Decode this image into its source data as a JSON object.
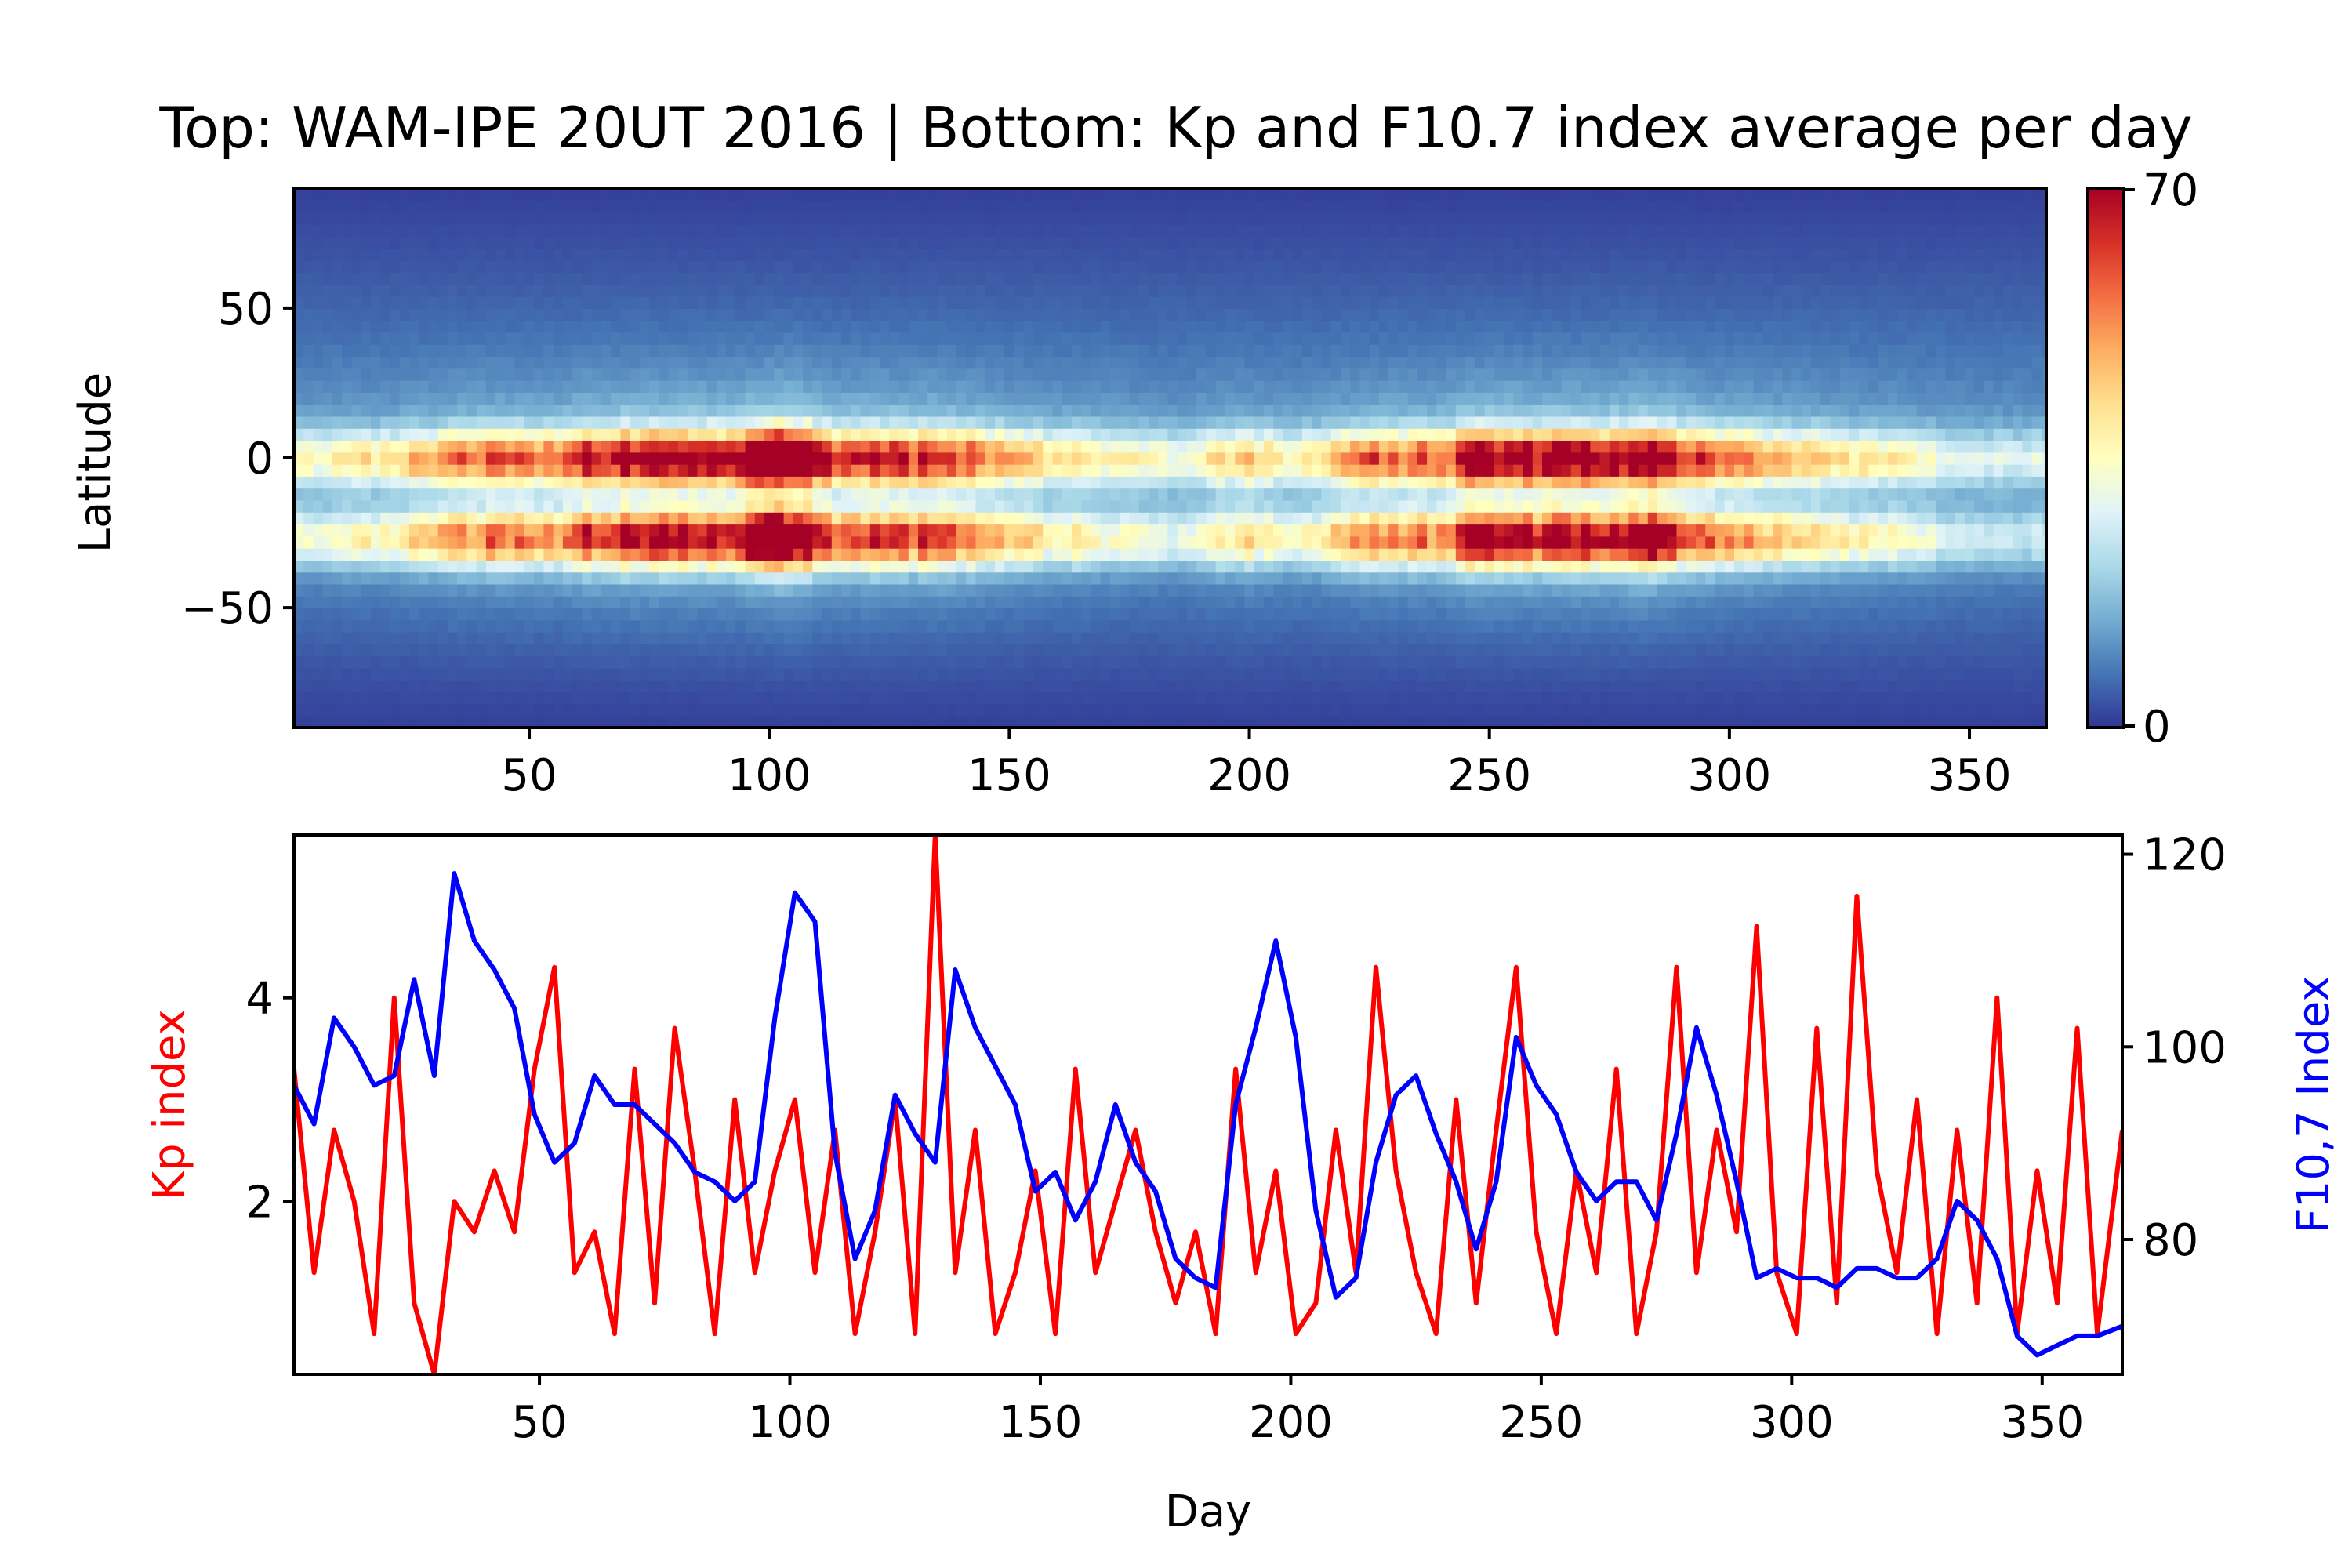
{
  "figure": {
    "title": "Top: WAM-IPE 20UT 2016 | Bottom: Kp and F10.7 index average per day"
  },
  "colors": {
    "kp": "#ff0000",
    "f107": "#0000ff",
    "colormap": [
      "#313695",
      "#4575b4",
      "#74add1",
      "#abd9e9",
      "#e0f3f8",
      "#ffffbf",
      "#fee090",
      "#fdae61",
      "#f46d43",
      "#d73027",
      "#a50026"
    ]
  },
  "chart_data": [
    {
      "type": "heatmap",
      "title": "",
      "xlabel": "",
      "ylabel": "Latitude",
      "xlim": [
        1,
        366
      ],
      "ylim": [
        -90,
        90
      ],
      "xticks": [
        50,
        100,
        150,
        200,
        250,
        300,
        350
      ],
      "yticks": [
        50,
        0,
        -50
      ],
      "ytick_labels": [
        "50",
        "0",
        "−50"
      ],
      "colorbar": {
        "min": 0,
        "max": 70,
        "tick_labels": [
          "70",
          "0"
        ],
        "colormap": "RdYlBu_r"
      },
      "description_values": {
        "equatorial_crests_lat": [
          0,
          -25
        ],
        "active_periods_days": [
          [
            15,
            140
          ],
          [
            220,
            300
          ]
        ],
        "quiet_periods_days": [
          [
            145,
            215
          ],
          [
            305,
            366
          ]
        ]
      }
    },
    {
      "type": "line",
      "title": "",
      "xlabel": "Day",
      "xlim": [
        1,
        366
      ],
      "xticks": [
        50,
        100,
        150,
        200,
        250,
        300,
        350
      ],
      "grid": false,
      "left_axis": {
        "label": "Kp index",
        "ylim": [
          0.3,
          5.6
        ],
        "ticks": [
          2,
          4
        ],
        "tick_labels": [
          "2",
          "4"
        ]
      },
      "right_axis": {
        "label": "F10,7 Index",
        "ylim": [
          66,
          122
        ],
        "ticks": [
          80,
          100,
          120
        ],
        "tick_labels": [
          "80",
          "100",
          "120"
        ]
      },
      "series": [
        {
          "name": "Kp index",
          "axis": "left",
          "x": [
            1,
            5,
            9,
            13,
            17,
            21,
            25,
            29,
            33,
            37,
            41,
            45,
            49,
            53,
            57,
            61,
            65,
            69,
            73,
            77,
            81,
            85,
            89,
            93,
            97,
            101,
            105,
            109,
            113,
            117,
            121,
            125,
            129,
            133,
            137,
            141,
            145,
            149,
            153,
            157,
            161,
            165,
            169,
            173,
            177,
            181,
            185,
            189,
            193,
            197,
            201,
            205,
            209,
            213,
            217,
            221,
            225,
            229,
            233,
            237,
            241,
            245,
            249,
            253,
            257,
            261,
            265,
            269,
            273,
            277,
            281,
            285,
            289,
            293,
            297,
            301,
            305,
            309,
            313,
            317,
            321,
            325,
            329,
            333,
            337,
            341,
            345,
            349,
            353,
            357,
            361,
            366
          ],
          "values": [
            3.3,
            1.3,
            2.7,
            2.0,
            0.7,
            4.0,
            1.0,
            0.3,
            2.0,
            1.7,
            2.3,
            1.7,
            3.3,
            4.3,
            1.3,
            1.7,
            0.7,
            3.3,
            1.0,
            3.7,
            2.3,
            0.7,
            3.0,
            1.3,
            2.3,
            3.0,
            1.3,
            2.7,
            0.7,
            1.7,
            3.0,
            0.7,
            5.6,
            1.3,
            2.7,
            0.7,
            1.3,
            2.3,
            0.7,
            3.3,
            1.3,
            2.0,
            2.7,
            1.7,
            1.0,
            1.7,
            0.7,
            3.3,
            1.3,
            2.3,
            0.7,
            1.0,
            2.7,
            1.3,
            4.3,
            2.3,
            1.3,
            0.7,
            3.0,
            1.0,
            2.7,
            4.3,
            1.7,
            0.7,
            2.3,
            1.3,
            3.3,
            0.7,
            1.7,
            4.3,
            1.3,
            2.7,
            1.7,
            4.7,
            1.3,
            0.7,
            3.7,
            1.0,
            5.0,
            2.3,
            1.3,
            3.0,
            0.7,
            2.7,
            1.0,
            4.0,
            0.7,
            2.3,
            1.0,
            3.7,
            0.7,
            2.7
          ],
          "line_color": "#ff0000"
        },
        {
          "name": "F10,7 Index",
          "axis": "right",
          "x": [
            1,
            5,
            9,
            13,
            17,
            21,
            25,
            29,
            33,
            37,
            41,
            45,
            49,
            53,
            57,
            61,
            65,
            69,
            73,
            77,
            81,
            85,
            89,
            93,
            97,
            101,
            105,
            109,
            113,
            117,
            121,
            125,
            129,
            133,
            137,
            141,
            145,
            149,
            153,
            157,
            161,
            165,
            169,
            173,
            177,
            181,
            185,
            189,
            193,
            197,
            201,
            205,
            209,
            213,
            217,
            221,
            225,
            229,
            233,
            237,
            241,
            245,
            249,
            253,
            257,
            261,
            265,
            269,
            273,
            277,
            281,
            285,
            289,
            293,
            297,
            301,
            305,
            309,
            313,
            317,
            321,
            325,
            329,
            333,
            337,
            341,
            345,
            349,
            353,
            357,
            361,
            366
          ],
          "values": [
            96,
            92,
            103,
            100,
            96,
            97,
            107,
            97,
            118,
            111,
            108,
            104,
            93,
            88,
            90,
            97,
            94,
            94,
            92,
            90,
            87,
            86,
            84,
            86,
            103,
            116,
            113,
            89,
            78,
            83,
            95,
            91,
            88,
            108,
            102,
            98,
            94,
            85,
            87,
            82,
            86,
            94,
            88,
            85,
            78,
            76,
            75,
            94,
            102,
            111,
            101,
            83,
            74,
            76,
            88,
            95,
            97,
            91,
            86,
            79,
            86,
            101,
            96,
            93,
            87,
            84,
            86,
            86,
            82,
            91,
            102,
            95,
            86,
            76,
            77,
            76,
            76,
            75,
            77,
            77,
            76,
            76,
            78,
            84,
            82,
            78,
            70,
            68,
            69,
            70,
            70,
            71
          ],
          "line_color": "#0000ff"
        }
      ]
    }
  ]
}
